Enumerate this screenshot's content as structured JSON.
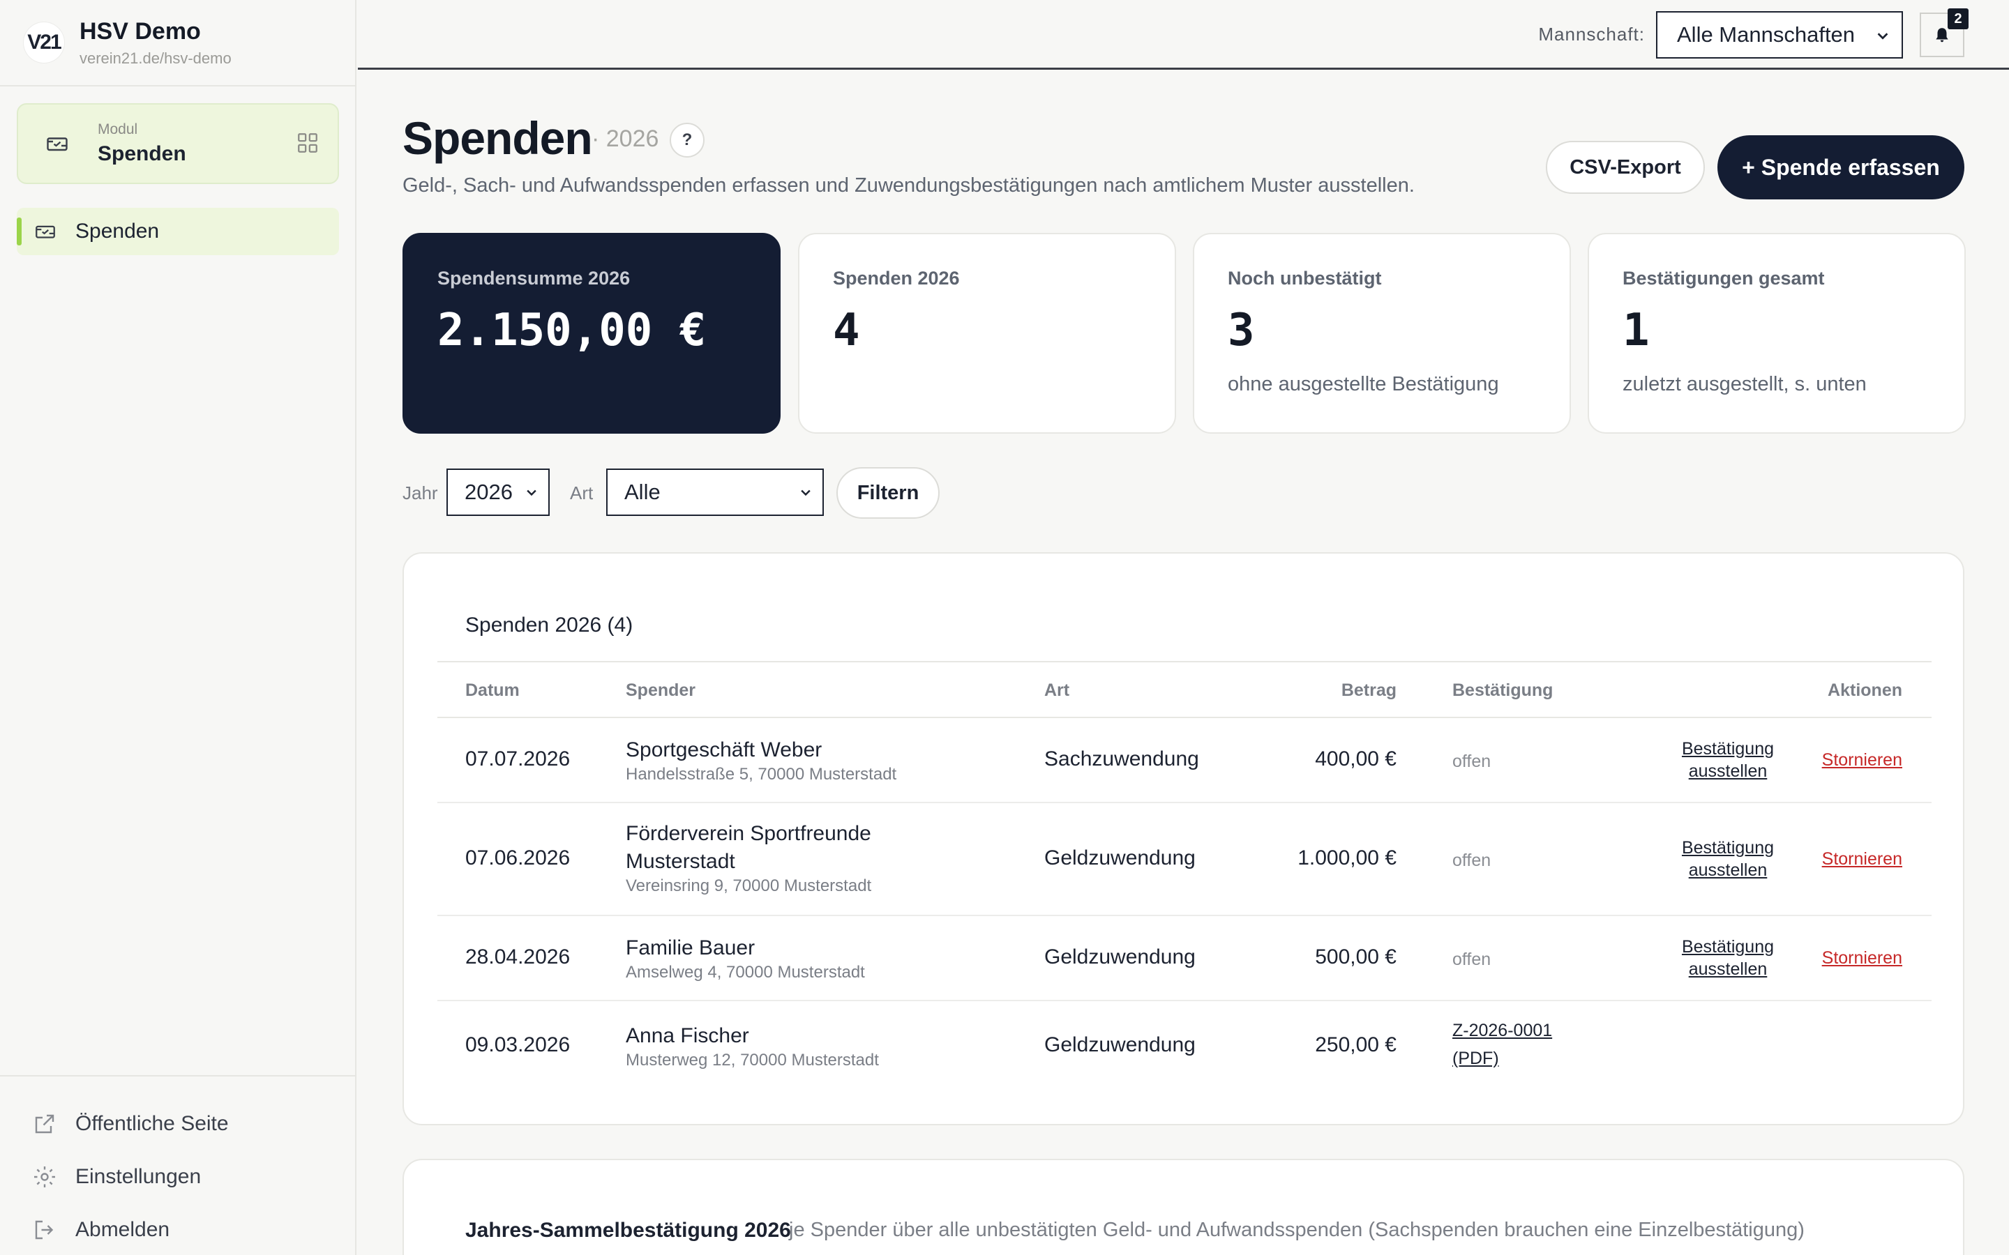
{
  "brand": {
    "logo": "V21",
    "name": "HSV Demo",
    "url": "verein21.de/hsv-demo"
  },
  "sidebar": {
    "module_caption": "Modul",
    "module_name": "Spenden",
    "nav_items": [
      {
        "label": "Spenden",
        "icon": "donation-icon"
      }
    ],
    "bottom_links": [
      {
        "label": "Öffentliche Seite",
        "icon": "external-link-icon"
      },
      {
        "label": "Einstellungen",
        "icon": "gear-icon"
      },
      {
        "label": "Abmelden",
        "icon": "logout-icon"
      }
    ]
  },
  "topbar": {
    "team_label": "Mannschaft:",
    "team_selected": "Alle Mannschaften",
    "notification_count": "2"
  },
  "header": {
    "title": "Spenden",
    "year": "· 2026",
    "help": "?",
    "subtitle": "Geld-, Sach- und Aufwandsspenden erfassen und Zuwendungsbestätigungen nach amtlichem Muster ausstellen.",
    "csv_button": "CSV-Export",
    "add_button": "+ Spende erfassen"
  },
  "kpis": [
    {
      "label": "Spendensumme 2026",
      "value": "2.150,00 €",
      "note": ""
    },
    {
      "label": "Spenden 2026",
      "value": "4",
      "note": ""
    },
    {
      "label": "Noch unbestätigt",
      "value": "3",
      "note": "ohne ausgestellte Bestätigung"
    },
    {
      "label": "Bestätigungen gesamt",
      "value": "1",
      "note": "zuletzt ausgestellt, s. unten"
    }
  ],
  "filters": {
    "year_label": "Jahr",
    "year_value": "2026",
    "type_label": "Art",
    "type_value": "Alle",
    "button": "Filtern"
  },
  "table": {
    "title": "Spenden 2026 (4)",
    "columns": {
      "date": "Datum",
      "donor": "Spender",
      "type": "Art",
      "amount": "Betrag",
      "confirmation": "Bestätigung",
      "actions": "Aktionen"
    },
    "rows": [
      {
        "date": "07.07.2026",
        "donor_name": "Sportgeschäft Weber",
        "donor_address": "Handelsstraße 5, 70000 Musterstadt",
        "type": "Sachzuwendung",
        "amount": "400,00 €",
        "status": "offen",
        "issue_line1": "Bestätigung",
        "issue_line2": "ausstellen",
        "cancel": "Stornieren"
      },
      {
        "date": "07.06.2026",
        "donor_name": "Förderverein Sportfreunde",
        "donor_name2": "Musterstadt",
        "donor_address": "Vereinsring 9, 70000 Musterstadt",
        "type": "Geldzuwendung",
        "amount": "1.000,00 €",
        "status": "offen",
        "issue_line1": "Bestätigung",
        "issue_line2": "ausstellen",
        "cancel": "Stornieren"
      },
      {
        "date": "28.04.2026",
        "donor_name": "Familie Bauer",
        "donor_address": "Amselweg 4, 70000 Musterstadt",
        "type": "Geldzuwendung",
        "amount": "500,00 €",
        "status": "offen",
        "issue_line1": "Bestätigung",
        "issue_line2": "ausstellen",
        "cancel": "Stornieren"
      },
      {
        "date": "09.03.2026",
        "donor_name": "Anna Fischer",
        "donor_address": "Musterweg 12, 70000 Musterstadt",
        "type": "Geldzuwendung",
        "amount": "250,00 €",
        "cert_number": "Z-2026-0001",
        "cert_pdf": "(PDF)"
      }
    ]
  },
  "summary": {
    "title": "Jahres-Sammelbestätigung 2026",
    "description": "je Spender über alle unbestätigten Geld- und Aufwandsspenden (Sachspenden brauchen eine Einzelbestätigung)"
  },
  "colors": {
    "accent_green": "#9bd44a",
    "dark_navy": "#141d33",
    "danger_red": "#c62828",
    "module_bg": "#eef6dd"
  }
}
